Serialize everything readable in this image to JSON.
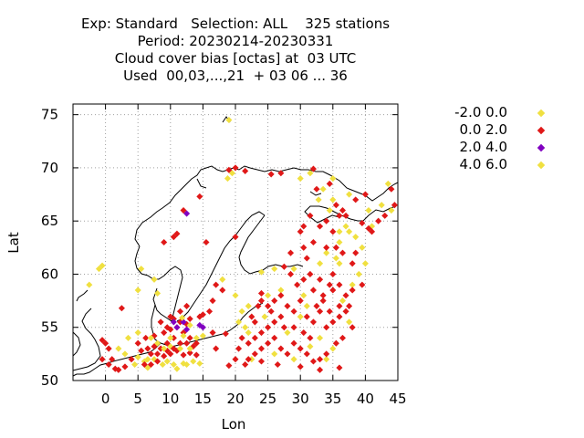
{
  "title_lines": [
    "Exp: Standard   Selection: ALL    325 stations",
    "Period: 20230214-20230331",
    "Cloud cover bias [octas] at  03 UTC",
    "Used  00,03,...,21  + 03 06 ... 36"
  ],
  "chart_data": {
    "type": "scatter",
    "xlabel": "Lon",
    "ylabel": "Lat",
    "xlim": [
      -5,
      45
    ],
    "ylim": [
      50,
      76
    ],
    "xticks": [
      0,
      5,
      10,
      15,
      20,
      25,
      30,
      35,
      40,
      45
    ],
    "yticks": [
      50,
      55,
      60,
      65,
      70,
      75
    ],
    "grid": true,
    "legend_position": "right",
    "series": [
      {
        "name": "-2.0 0.0",
        "color": "#f0e040",
        "points": [
          [
            19.0,
            74.5
          ],
          [
            19.5,
            69.5
          ],
          [
            18.8,
            69.0
          ],
          [
            30.0,
            69.0
          ],
          [
            31.5,
            69.5
          ],
          [
            35.0,
            69.0
          ],
          [
            33.5,
            68.0
          ],
          [
            37.5,
            67.5
          ],
          [
            35.0,
            67.0
          ],
          [
            32.8,
            67.0
          ],
          [
            43.5,
            68.5
          ],
          [
            44.0,
            66.0
          ],
          [
            41.0,
            64.5
          ],
          [
            37.5,
            64.0
          ],
          [
            38.5,
            63.5
          ],
          [
            39.5,
            62.5
          ],
          [
            36.0,
            63.0
          ],
          [
            34.0,
            62.0
          ],
          [
            35.5,
            61.5
          ],
          [
            33.0,
            61.0
          ],
          [
            29.0,
            60.5
          ],
          [
            26.0,
            60.5
          ],
          [
            24.0,
            60.2
          ],
          [
            39.0,
            60.0
          ],
          [
            38.0,
            59.0
          ],
          [
            27.0,
            58.5
          ],
          [
            25.0,
            58.0
          ],
          [
            22.0,
            57.0
          ],
          [
            21.0,
            56.5
          ],
          [
            30.0,
            56.0
          ],
          [
            28.0,
            54.5
          ],
          [
            33.0,
            54.0
          ],
          [
            35.0,
            53.0
          ],
          [
            31.5,
            53.2
          ],
          [
            34.0,
            52.0
          ],
          [
            -2.5,
            59.0
          ],
          [
            -1.0,
            60.5
          ],
          [
            -0.5,
            60.8
          ],
          [
            5.5,
            60.5
          ],
          [
            5.0,
            58.5
          ],
          [
            8.0,
            58.2
          ],
          [
            7.5,
            59.5
          ],
          [
            14.0,
            54.0
          ],
          [
            18.0,
            59.5
          ],
          [
            20.0,
            58.0
          ],
          [
            5.0,
            54.5
          ],
          [
            3.5,
            54.0
          ],
          [
            2.0,
            53.0
          ],
          [
            3.0,
            52.5
          ],
          [
            5.0,
            52.2
          ],
          [
            4.5,
            51.5
          ],
          [
            6.0,
            51.8
          ],
          [
            7.5,
            52.0
          ],
          [
            8.8,
            51.5
          ],
          [
            9.5,
            51.8
          ],
          [
            10.5,
            51.5
          ],
          [
            12.0,
            51.6
          ],
          [
            13.5,
            51.8
          ],
          [
            14.5,
            51.6
          ],
          [
            8.0,
            53.5
          ],
          [
            10.0,
            53.2
          ],
          [
            6.5,
            51.2
          ],
          [
            11.0,
            51.1
          ],
          [
            20.5,
            55.5
          ],
          [
            24.5,
            56.0
          ],
          [
            26.0,
            52.5
          ],
          [
            29.0,
            52.0
          ],
          [
            30.5,
            58.0
          ],
          [
            31.0,
            57.0
          ],
          [
            22.5,
            52.0
          ],
          [
            37.5,
            55.5
          ],
          [
            36.5,
            57.5
          ],
          [
            40.0,
            61.0
          ],
          [
            36.0,
            61.0
          ]
        ]
      },
      {
        "name": "0.0 2.0",
        "color": "#e01818",
        "points": [
          [
            19.0,
            69.8
          ],
          [
            20.0,
            70.0
          ],
          [
            21.5,
            69.7
          ],
          [
            25.5,
            69.4
          ],
          [
            27.0,
            69.5
          ],
          [
            32.0,
            69.9
          ],
          [
            40.0,
            67.5
          ],
          [
            42.0,
            65.0
          ],
          [
            43.0,
            65.5
          ],
          [
            44.0,
            68.0
          ],
          [
            44.5,
            66.5
          ],
          [
            39.5,
            64.8
          ],
          [
            37.0,
            65.5
          ],
          [
            33.0,
            64.5
          ],
          [
            34.0,
            65.0
          ],
          [
            35.0,
            64.0
          ],
          [
            36.0,
            65.5
          ],
          [
            30.0,
            64.0
          ],
          [
            31.0,
            61.5
          ],
          [
            30.5,
            62.5
          ],
          [
            33.0,
            59.5
          ],
          [
            32.0,
            58.5
          ],
          [
            30.5,
            59.5
          ],
          [
            29.5,
            59.0
          ],
          [
            28.5,
            60.0
          ],
          [
            35.5,
            62.5
          ],
          [
            35.0,
            60.0
          ],
          [
            36.0,
            59.0
          ],
          [
            37.0,
            58.0
          ],
          [
            38.0,
            58.5
          ],
          [
            34.5,
            59.0
          ],
          [
            30.0,
            57.5
          ],
          [
            28.0,
            57.0
          ],
          [
            27.0,
            56.0
          ],
          [
            26.0,
            55.5
          ],
          [
            25.0,
            55.0
          ],
          [
            24.0,
            54.5
          ],
          [
            23.0,
            54.0
          ],
          [
            22.5,
            56.0
          ],
          [
            24.0,
            57.5
          ],
          [
            26.0,
            57.5
          ],
          [
            27.0,
            58.0
          ],
          [
            29.0,
            56.5
          ],
          [
            31.0,
            56.0
          ],
          [
            32.0,
            55.5
          ],
          [
            33.0,
            56.5
          ],
          [
            34.0,
            55.0
          ],
          [
            35.0,
            55.5
          ],
          [
            36.0,
            56.0
          ],
          [
            37.0,
            56.5
          ],
          [
            38.0,
            55.0
          ],
          [
            36.5,
            54.0
          ],
          [
            35.5,
            53.5
          ],
          [
            34.0,
            52.5
          ],
          [
            33.0,
            52.0
          ],
          [
            32.0,
            51.8
          ],
          [
            31.0,
            52.5
          ],
          [
            30.0,
            53.0
          ],
          [
            29.0,
            53.5
          ],
          [
            28.0,
            52.5
          ],
          [
            27.0,
            53.0
          ],
          [
            26.0,
            54.0
          ],
          [
            25.0,
            53.5
          ],
          [
            24.0,
            53.0
          ],
          [
            23.0,
            52.5
          ],
          [
            22.0,
            53.5
          ],
          [
            21.0,
            54.0
          ],
          [
            20.5,
            53.0
          ],
          [
            20.0,
            52.0
          ],
          [
            21.5,
            51.5
          ],
          [
            24.0,
            51.8
          ],
          [
            26.5,
            51.5
          ],
          [
            30.0,
            51.3
          ],
          [
            33.0,
            51.0
          ],
          [
            36.0,
            51.2
          ],
          [
            25.5,
            56.5
          ],
          [
            27.5,
            55.0
          ],
          [
            29.0,
            55.0
          ],
          [
            30.5,
            54.5
          ],
          [
            31.5,
            54.0
          ],
          [
            32.5,
            57.0
          ],
          [
            33.5,
            57.5
          ],
          [
            34.5,
            56.5
          ],
          [
            36.0,
            57.0
          ],
          [
            37.5,
            57.0
          ],
          [
            25.0,
            57.0
          ],
          [
            23.0,
            55.5
          ],
          [
            23.5,
            57.0
          ],
          [
            24.0,
            58.2
          ],
          [
            12.0,
            66.0
          ],
          [
            10.5,
            63.5
          ],
          [
            11.0,
            63.8
          ],
          [
            15.5,
            63.0
          ],
          [
            14.5,
            67.3
          ],
          [
            9.0,
            63.0
          ],
          [
            18.0,
            58.5
          ],
          [
            17.0,
            59.0
          ],
          [
            16.5,
            57.5
          ],
          [
            16.0,
            56.5
          ],
          [
            14.5,
            56.0
          ],
          [
            13.0,
            55.8
          ],
          [
            12.5,
            57.0
          ],
          [
            11.5,
            56.5
          ],
          [
            10.0,
            56.0
          ],
          [
            9.5,
            55.0
          ],
          [
            8.5,
            55.5
          ],
          [
            9.0,
            54.5
          ],
          [
            10.0,
            54.8
          ],
          [
            11.0,
            55.0
          ],
          [
            12.0,
            54.5
          ],
          [
            13.0,
            54.0
          ],
          [
            14.0,
            53.5
          ],
          [
            10.5,
            54.0
          ],
          [
            9.5,
            53.5
          ],
          [
            8.5,
            53.0
          ],
          [
            7.5,
            53.2
          ],
          [
            6.5,
            53.0
          ],
          [
            5.5,
            52.8
          ],
          [
            7.0,
            52.5
          ],
          [
            8.0,
            52.5
          ],
          [
            9.0,
            52.3
          ],
          [
            10.0,
            52.5
          ],
          [
            11.0,
            52.8
          ],
          [
            12.0,
            52.4
          ],
          [
            13.0,
            52.6
          ],
          [
            14.0,
            52.4
          ],
          [
            11.5,
            53.5
          ],
          [
            12.5,
            53.5
          ],
          [
            13.5,
            53.2
          ],
          [
            10.5,
            53.0
          ],
          [
            9.5,
            52.8
          ],
          [
            8.0,
            51.8
          ],
          [
            7.0,
            51.5
          ],
          [
            6.0,
            51.5
          ],
          [
            3.0,
            51.3
          ],
          [
            2.0,
            51.0
          ],
          [
            1.5,
            51.1
          ],
          [
            0.5,
            51.5
          ],
          [
            -0.5,
            52.0
          ],
          [
            0.0,
            53.5
          ],
          [
            -0.5,
            53.8
          ],
          [
            0.5,
            53.0
          ],
          [
            1.0,
            52.0
          ],
          [
            2.5,
            56.8
          ],
          [
            15.0,
            56.2
          ],
          [
            18.5,
            54.4
          ],
          [
            16.5,
            54.5
          ],
          [
            17.0,
            53.0
          ],
          [
            22.0,
            52.0
          ],
          [
            19.0,
            51.4
          ],
          [
            7.5,
            54.2
          ],
          [
            6.2,
            54.0
          ],
          [
            5.0,
            53.5
          ],
          [
            4.0,
            52.0
          ],
          [
            10.5,
            55.8
          ],
          [
            11.5,
            55.5
          ],
          [
            12.5,
            55.3
          ],
          [
            36.5,
            62.0
          ],
          [
            38.5,
            62.0
          ],
          [
            40.5,
            64.3
          ],
          [
            38.0,
            61.0
          ],
          [
            39.5,
            59.0
          ],
          [
            31.5,
            60.0
          ],
          [
            33.5,
            58.0
          ],
          [
            35.0,
            58.5
          ],
          [
            34.0,
            62.5
          ],
          [
            32.0,
            63.0
          ],
          [
            28.5,
            62.0
          ],
          [
            27.5,
            60.7
          ],
          [
            20.0,
            63.5
          ],
          [
            30.5,
            64.5
          ],
          [
            31.5,
            65.5
          ],
          [
            36.5,
            66.0
          ],
          [
            38.5,
            67.0
          ],
          [
            41.0,
            64.0
          ],
          [
            32.5,
            68.0
          ],
          [
            34.5,
            68.5
          ],
          [
            35.5,
            66.5
          ]
        ]
      },
      {
        "name": "2.0 4.0",
        "color": "#8000c0",
        "points": [
          [
            11.0,
            55.0
          ],
          [
            12.0,
            55.5
          ],
          [
            12.5,
            54.8
          ],
          [
            10.5,
            55.5
          ],
          [
            14.5,
            55.2
          ],
          [
            15.0,
            55.0
          ],
          [
            12.5,
            65.7
          ]
        ]
      },
      {
        "name": "4.0 6.0",
        "color": "#f0e040",
        "points": [
          [
            15.0,
            54.2
          ],
          [
            13.0,
            55.2
          ],
          [
            12.0,
            54.2
          ],
          [
            11.8,
            55.9
          ],
          [
            10.0,
            54.0
          ],
          [
            11.5,
            53.0
          ],
          [
            9.0,
            53.0
          ],
          [
            7.0,
            54.0
          ],
          [
            6.5,
            52.0
          ],
          [
            12.5,
            51.5
          ],
          [
            13.0,
            53.0
          ],
          [
            22.0,
            54.5
          ],
          [
            21.5,
            55.0
          ],
          [
            37.0,
            64.5
          ],
          [
            36.0,
            64.0
          ],
          [
            34.5,
            66.0
          ],
          [
            40.5,
            66.0
          ],
          [
            42.5,
            66.5
          ]
        ]
      }
    ]
  }
}
